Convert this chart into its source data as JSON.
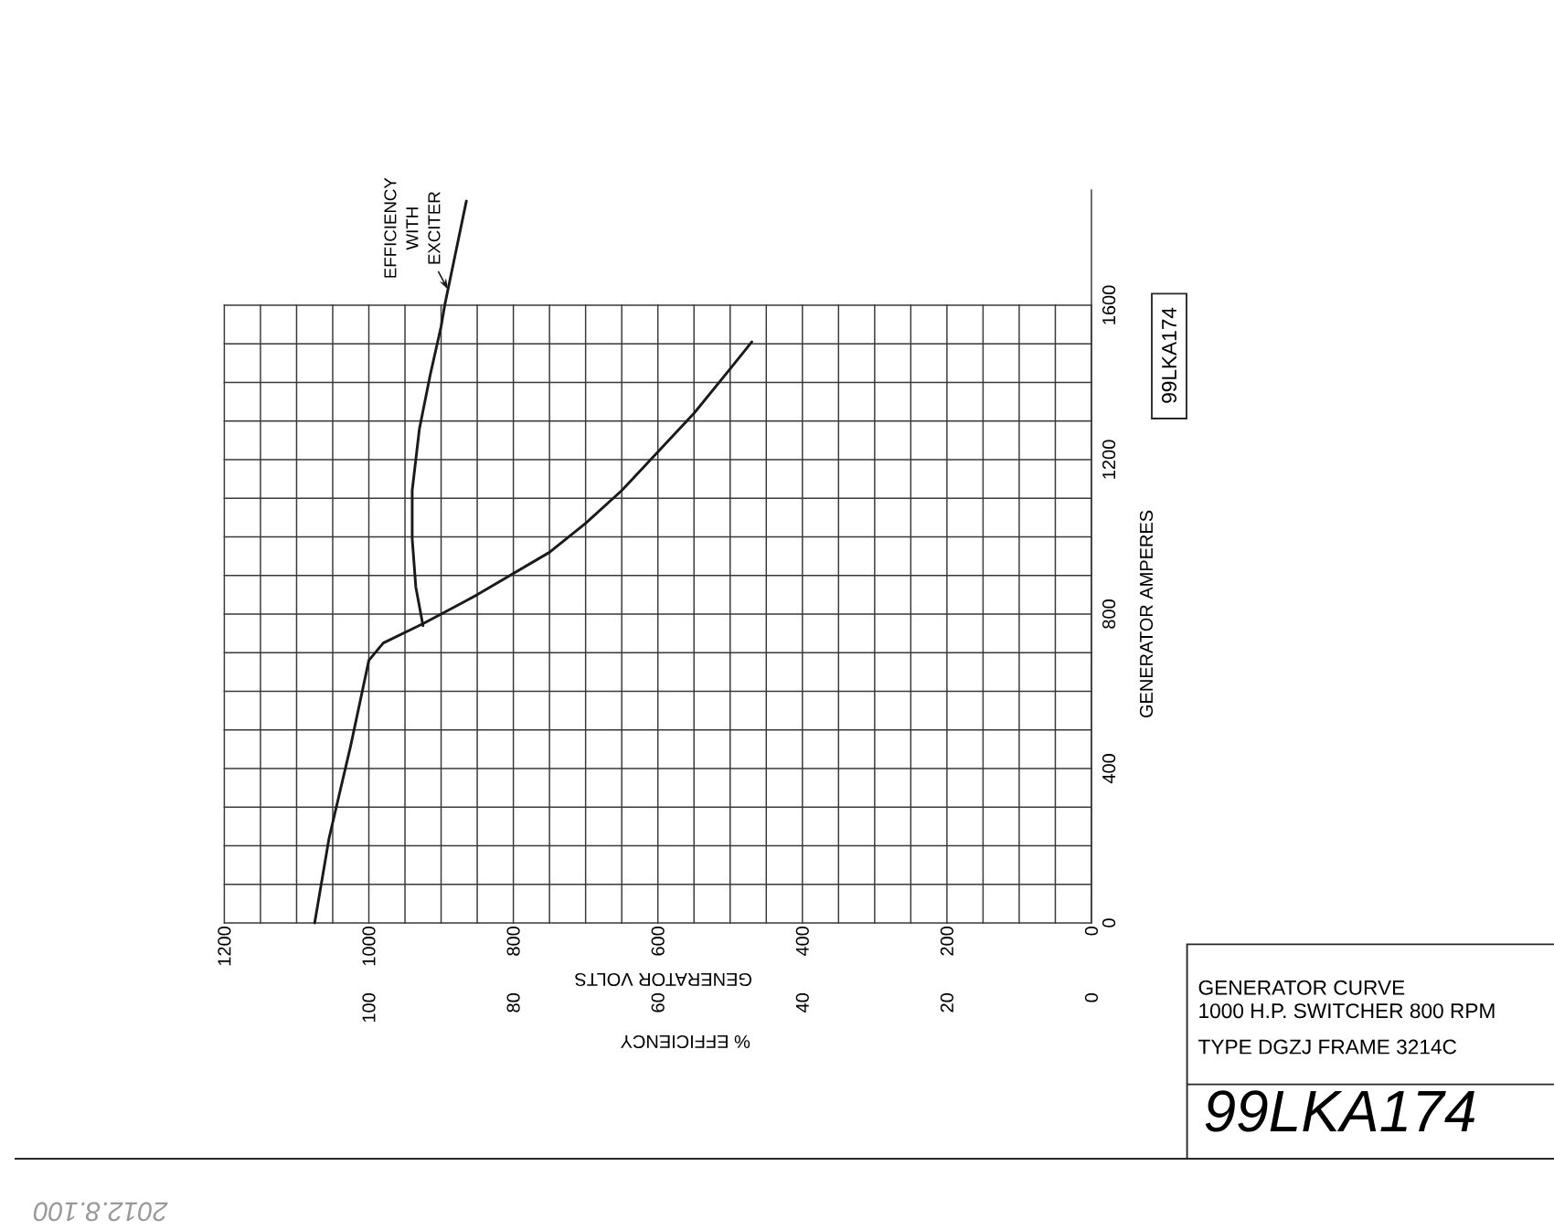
{
  "chart_data": {
    "type": "line",
    "title": "GENERATOR CURVE",
    "subtitle": "1000 H.P. SWITCHER 800 RPM",
    "xlabel": "GENERATOR VOLTS",
    "x2label": "% EFFICIENCY",
    "ylabel": "GENERATOR AMPERES",
    "annotations": [
      "TYPE DGZJ FRAME 3214C",
      "99LKA174",
      "99LKA174",
      "2012.8.100"
    ],
    "xlim": [
      1200,
      0
    ],
    "xticks": [
      0,
      {
        "value": 50,
        "label": null
      },
      {
        "value": 100,
        "label": null
      },
      {
        "value": 150,
        "label": null
      },
      200,
      {
        "value": 250,
        "label": null
      },
      {
        "value": 300,
        "label": null
      },
      {
        "value": 350,
        "label": null
      },
      400,
      {
        "value": 450,
        "label": null
      },
      {
        "value": 500,
        "label": null
      },
      {
        "value": 550,
        "label": null
      },
      600,
      {
        "value": 650,
        "label": null
      },
      {
        "value": 700,
        "label": null
      },
      {
        "value": 750,
        "label": null
      },
      800,
      {
        "value": 850,
        "label": null
      },
      {
        "value": 900,
        "label": null
      },
      {
        "value": 950,
        "label": null
      },
      1000,
      {
        "value": 1050,
        "label": null
      },
      {
        "value": 1100,
        "label": null
      },
      {
        "value": 1150,
        "label": null
      },
      1200
    ],
    "x2lim": [
      120,
      0
    ],
    "x2ticks": [
      0,
      20,
      40,
      60,
      80,
      100
    ],
    "ylim": [
      0,
      1900
    ],
    "yticks": [
      0,
      {
        "value": 100,
        "label": null
      },
      {
        "value": 200,
        "label": null
      },
      {
        "value": 300,
        "label": null
      },
      400,
      {
        "value": 500,
        "label": null
      },
      {
        "value": 600,
        "label": null
      },
      {
        "value": 700,
        "label": null
      },
      800,
      {
        "value": 900,
        "label": null
      },
      {
        "value": 1000,
        "label": null
      },
      {
        "value": 1100,
        "label": null
      },
      1200,
      {
        "value": 1300,
        "label": null
      },
      {
        "value": 1400,
        "label": null
      },
      {
        "value": 1500,
        "label": null
      },
      1600
    ],
    "grid": true,
    "series": [
      {
        "color": "#1a1a1a",
        "x": [
          1075,
          1055,
          1025,
          1000,
          980,
          925,
          850,
          750,
          700,
          650,
          600,
          550,
          500,
          470
        ],
        "values": [
          0,
          220,
          460,
          680,
          725,
          775,
          850,
          960,
          1035,
          1120,
          1220,
          1320,
          1435,
          1505
        ]
      },
      {
        "name": "EFFICIENCY WITH EXCITER",
        "color": "#1a1a1a",
        "axis": "x2",
        "x": [
          92.5,
          93.5,
          94,
          94,
          93,
          91.5,
          90,
          89.5,
          86.5
        ],
        "values": [
          770,
          870,
          995,
          1120,
          1280,
          1420,
          1545,
          1600,
          1870
        ]
      }
    ]
  }
}
